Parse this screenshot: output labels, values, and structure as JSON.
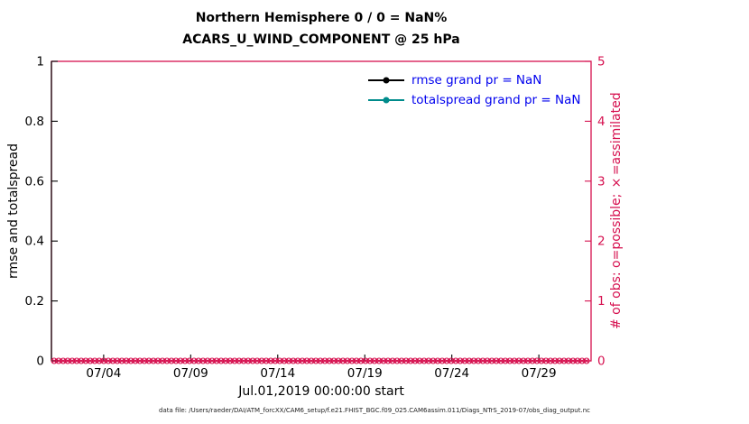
{
  "colors": {
    "crimson": "#d6104f",
    "legend_text": "#0000ee",
    "teal": "#008b8b",
    "black": "#000000"
  },
  "footer": "data file: /Users/raeder/DAI/ATM_forcXX/CAM6_setup/f.e21.FHIST_BGC.f09_025.CAM6assim.011/Diags_NTrS_2019-07/obs_diag_output.nc",
  "chart_data": {
    "type": "line",
    "title1": "Northern Hemisphere 0 / 0 = NaN%",
    "title2": "ACARS_U_WIND_COMPONENT @ 25 hPa",
    "xlabel": "Jul.01,2019 00:00:00 start",
    "ylabel_left": "rmse and totalspread",
    "ylabel_right": "# of obs: o=possible; ×=assimilated",
    "ylim_left": [
      0,
      1
    ],
    "ylim_right": [
      0,
      5
    ],
    "yticks_left": [
      0,
      0.2,
      0.4,
      0.6,
      0.8,
      1
    ],
    "ytick_labels_left": [
      "0",
      "0.2",
      "0.4",
      "0.6",
      "0.8",
      "1"
    ],
    "yticks_right": [
      0,
      1,
      2,
      3,
      4,
      5
    ],
    "ytick_labels_right": [
      "0",
      "1",
      "2",
      "3",
      "4",
      "5"
    ],
    "x_span_days": 31,
    "x_start": "Jul.01,2019 00:00:00",
    "xticks": [
      {
        "label": "07/04",
        "day": 3
      },
      {
        "label": "07/09",
        "day": 8
      },
      {
        "label": "07/14",
        "day": 13
      },
      {
        "label": "07/19",
        "day": 18
      },
      {
        "label": "07/24",
        "day": 23
      },
      {
        "label": "07/29",
        "day": 28
      }
    ],
    "grid": false,
    "legend_position": "top-right-inside",
    "series": [
      {
        "name": "rmse",
        "legend_label": "rmse grand pr = NaN",
        "color": "#000000",
        "axis": "left",
        "values": "NaN - no curve plotted"
      },
      {
        "name": "totalspread",
        "legend_label": "totalspread grand pr = NaN",
        "color": "#008b8b",
        "axis": "left",
        "values": "NaN - no curve plotted"
      },
      {
        "name": "possible-obs",
        "marker": "o",
        "color": "#d6104f",
        "axis": "right",
        "constant_value": 0
      },
      {
        "name": "assimilated-obs",
        "marker": "x",
        "color": "#d6104f",
        "axis": "right",
        "constant_value": 0
      }
    ]
  }
}
